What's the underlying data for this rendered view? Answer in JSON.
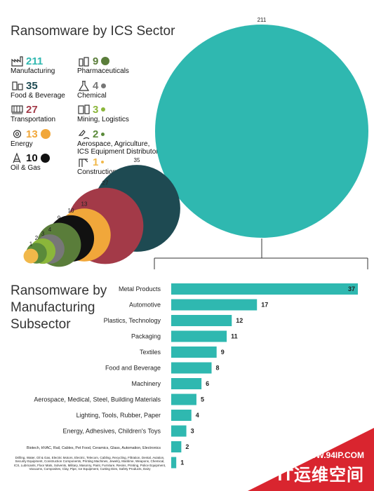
{
  "section1": {
    "title": "Ransomware by ICS Sector"
  },
  "section2": {
    "title": "Ransomware by Manufacturing Subsector"
  },
  "sectors": [
    {
      "count": "211",
      "label": "Manufacturing",
      "color": "#2fb8b0",
      "icon": "factory-icon",
      "dot": false
    },
    {
      "count": "35",
      "label": "Food & Beverage",
      "color": "#1e4a52",
      "icon": "food-icon",
      "dot": false
    },
    {
      "count": "27",
      "label": "Transportation",
      "color": "#a33a48",
      "icon": "train-icon",
      "dot": false
    },
    {
      "count": "13",
      "label": "Energy",
      "color": "#f1a73a",
      "icon": "energy-gear-icon",
      "dot": true
    },
    {
      "count": "10",
      "label": "Oil & Gas",
      "color": "#111111",
      "icon": "oil-rig-icon",
      "dot": true
    },
    {
      "count": "9",
      "label": "Pharmaceuticals",
      "color": "#5a7d3a",
      "icon": "pharma-icon",
      "dot": true
    },
    {
      "count": "4",
      "label": "Chemical",
      "color": "#777777",
      "icon": "flask-icon",
      "dot": true
    },
    {
      "count": "3",
      "label": "Mining, Logistics",
      "color": "#8bb63a",
      "icon": "mining-icon",
      "dot": true
    },
    {
      "count": "2",
      "label": "Aerospace, Agriculture,\nICS Equipment Distributor",
      "color": "#5a8a3a",
      "icon": "aerospace-icon",
      "dot": true
    },
    {
      "count": "1",
      "label": "Construction, Water",
      "color": "#f1b84a",
      "icon": "construction-icon",
      "dot": true
    }
  ],
  "chart_data": [
    {
      "type": "bubble",
      "title": "Ransomware by ICS Sector",
      "categories": [
        "Manufacturing",
        "Food & Beverage",
        "Transportation",
        "Energy",
        "Oil & Gas",
        "Pharmaceuticals",
        "Chemical",
        "Mining, Logistics",
        "Aerospace, Agriculture, ICS Equipment Distributor",
        "Construction, Water"
      ],
      "values": [
        211,
        35,
        27,
        13,
        10,
        9,
        4,
        3,
        2,
        1
      ],
      "value_labels": [
        "211",
        "35",
        "27",
        "13",
        "10",
        "9",
        "4",
        "3",
        "2",
        "1"
      ],
      "colors": [
        "#2fb8b0",
        "#1e4a52",
        "#a33a48",
        "#f1a73a",
        "#111111",
        "#5a7d3a",
        "#777777",
        "#8bb63a",
        "#5a8a3a",
        "#f1b84a"
      ]
    },
    {
      "type": "bar",
      "orientation": "horizontal",
      "title": "Ransomware by Manufacturing Subsector",
      "xlim": [
        0,
        37
      ],
      "bar_color": "#2fb8b0",
      "categories": [
        "Metal Products",
        "Automotive",
        "Plastics, Technology",
        "Packaging",
        "Textiles",
        "Food and Beverage",
        "Machinery",
        "Aerospace, Medical, Steel, Building Materials",
        "Lighting, Tools, Rubber, Paper",
        "Energy, Adhesives, Children's Toys",
        "Biotech, HVAC, Rail, Cables, Pet Food, Ceramics, Glass, Automation, Electronics",
        "Drilling, Water, Oil & Gas, Electric Motors, Electric, Telecom, Cabling, Recycling, Filtration, Dental, Aviation, Security Equipment, Construction Components, Printing Machines, Jewelry, Maritime, Weapons, Chemical, ICS, Lubricants, Floor Mats, Solvents, Military, Masonry, Paint, Furniture, Resins, Printing, Police Equipment, Vacuums, Composites, Clay, Pipe, Ice Equipment, Cutting Dies, Safety Products, Dairy"
      ],
      "values": [
        37,
        17,
        12,
        11,
        9,
        8,
        6,
        5,
        4,
        3,
        2,
        1
      ],
      "value_labels": [
        "37",
        "17",
        "12",
        "11",
        "9",
        "8",
        "6",
        "5",
        "4",
        "3",
        "2",
        "1"
      ]
    }
  ],
  "watermark": {
    "url": "WWW.94IP.COM",
    "name": "IT运维空间"
  }
}
